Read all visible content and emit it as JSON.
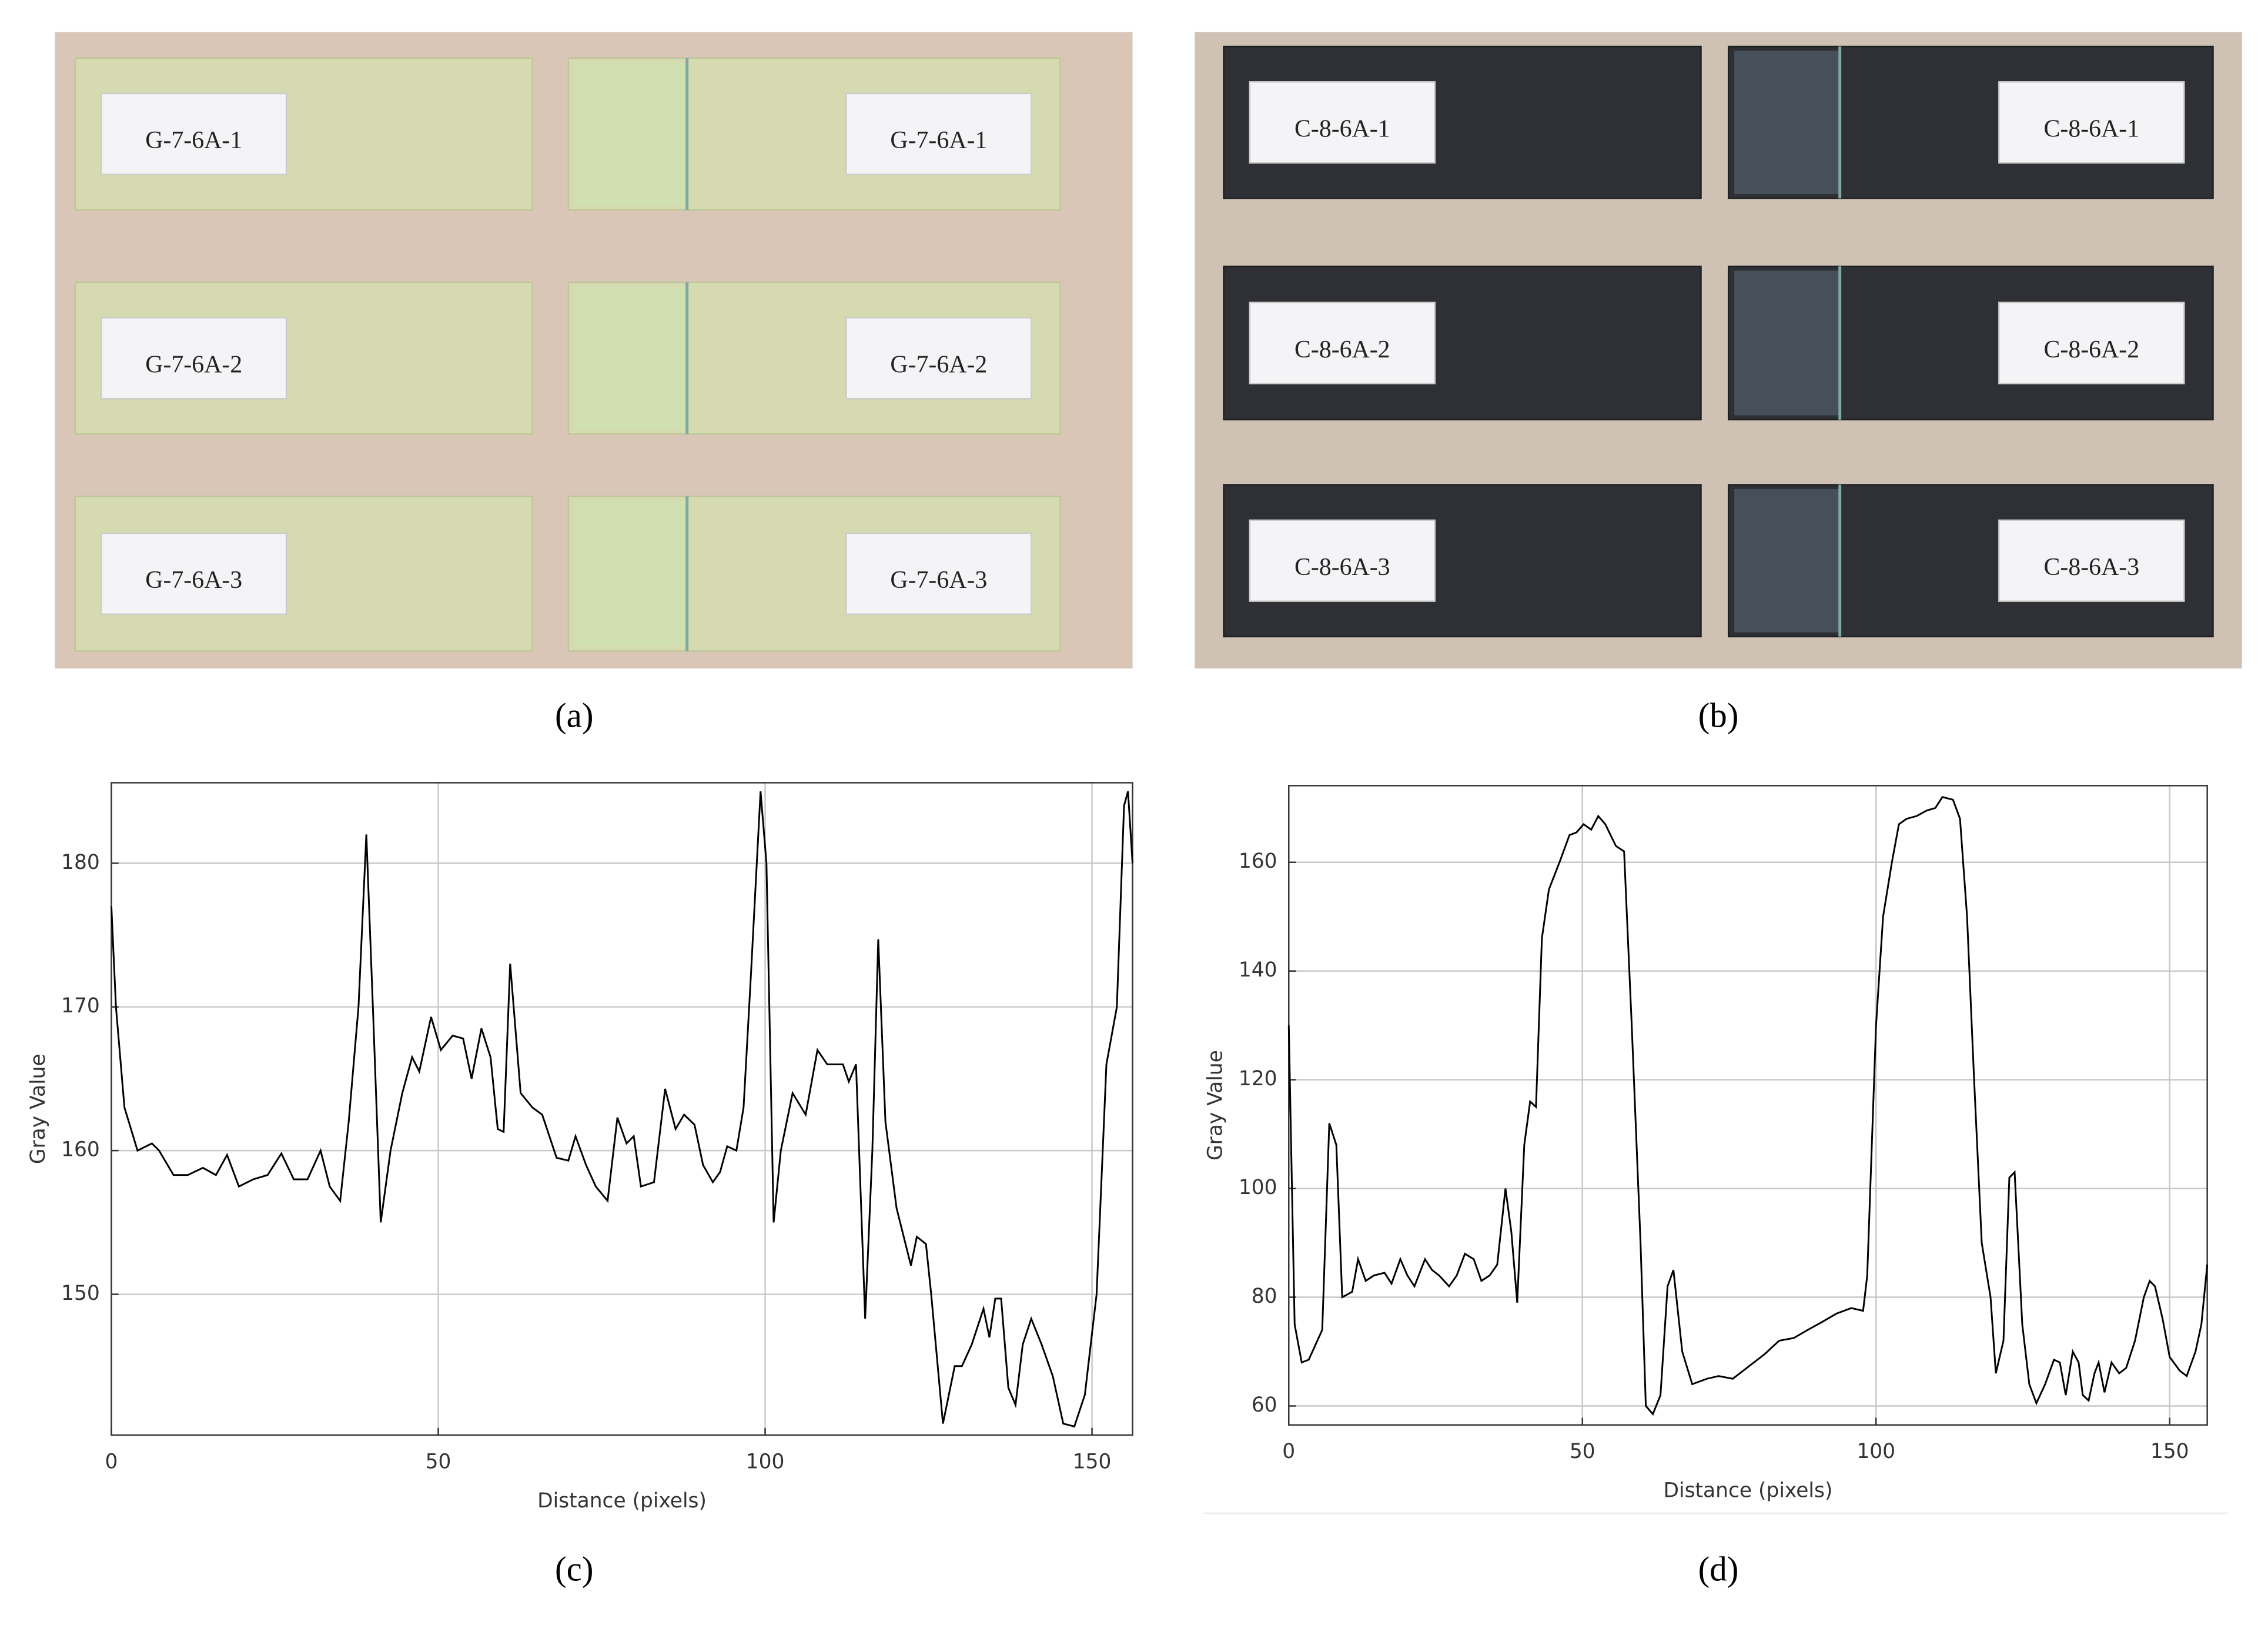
{
  "photos": [
    {
      "caption": "(a)",
      "specimens": [
        {
          "left": "G-7-6A-1",
          "right": "G-7-6A-1"
        },
        {
          "left": "G-7-6A-2",
          "right": "G-7-6A-2"
        },
        {
          "left": "G-7-6A-3",
          "right": "G-7-6A-3"
        }
      ]
    },
    {
      "caption": "(b)",
      "specimens": [
        {
          "left": "C-8-6A-1",
          "right": "C-8-6A-1"
        },
        {
          "left": "C-8-6A-2",
          "right": "C-8-6A-2"
        },
        {
          "left": "C-8-6A-3",
          "right": "C-8-6A-3"
        }
      ]
    }
  ],
  "chart_data": [
    {
      "type": "line",
      "caption": "(c)",
      "xlabel": "Distance (pixels)",
      "ylabel": "Gray Value",
      "color": "#000000",
      "grid": true,
      "xlim": [
        0,
        156.2
      ],
      "xticks": [
        0,
        50,
        100,
        150
      ],
      "ylim": [
        140.2,
        185.6
      ],
      "yticks": [
        150,
        160,
        170,
        180
      ],
      "x": [
        0,
        0.7,
        2,
        4,
        6.2,
        7.3,
        9.5,
        11.7,
        14,
        16,
        17.7,
        19.5,
        21.7,
        23.9,
        26,
        27.9,
        30,
        32,
        33.4,
        35,
        36.3,
        37.8,
        39,
        40,
        41.2,
        42.7,
        44.5,
        46,
        47.1,
        48.9,
        50.4,
        52.2,
        53.8,
        55.1,
        56.6,
        58,
        59.1,
        60,
        61,
        62.6,
        64.4,
        65.9,
        68.1,
        69.9,
        71,
        72.6,
        74.1,
        75.9,
        77.4,
        78.8,
        79.9,
        81,
        83,
        84.7,
        86.3,
        87.6,
        89.2,
        90.5,
        92,
        93.1,
        94.2,
        95.6,
        96.7,
        97.8,
        99.3,
        100.2,
        101.3,
        102.4,
        104.2,
        106.2,
        108,
        109.5,
        111.9,
        112.8,
        113.9,
        115.3,
        116.4,
        117.3,
        118.4,
        120.1,
        122.3,
        123.2,
        124.6,
        125.4,
        127.2,
        129,
        130.1,
        131.6,
        133.4,
        134.3,
        135.2,
        136.1,
        137.2,
        138.3,
        139.4,
        140.7,
        142.3,
        144,
        145.6,
        147.3,
        148.9,
        150.7,
        152.2,
        153.8,
        154.9,
        155.5,
        156.2
      ],
      "values": [
        177,
        170,
        163,
        160,
        160.5,
        160,
        158.3,
        158.3,
        158.8,
        158.3,
        159.7,
        157.5,
        158,
        158.3,
        159.8,
        158,
        158,
        160,
        157.5,
        156.5,
        162,
        170,
        182,
        170,
        155,
        160,
        164,
        166.5,
        165.5,
        169.3,
        167,
        168,
        167.8,
        165,
        168.5,
        166.5,
        161.5,
        161.3,
        173,
        164,
        163,
        162.5,
        159.5,
        159.3,
        161,
        159,
        157.5,
        156.5,
        162.3,
        160.5,
        161,
        157.5,
        157.8,
        164.3,
        161.5,
        162.5,
        161.8,
        159,
        157.8,
        158.5,
        160.3,
        160,
        163,
        172,
        185,
        180,
        155,
        160,
        164,
        162.5,
        167,
        166,
        166,
        164.8,
        166,
        148.3,
        160,
        174.7,
        162,
        156,
        152,
        154,
        153.5,
        150,
        141,
        145,
        145,
        146.5,
        149,
        147,
        149.7,
        149.7,
        143.5,
        142.3,
        146.5,
        148.3,
        146.5,
        144.3,
        141,
        140.8,
        143,
        150,
        166,
        170,
        184,
        185,
        180
      ]
    },
    {
      "type": "line",
      "caption": "(d)",
      "xlabel": "Distance (pixels)",
      "ylabel": "Gray Value",
      "color": "#000000",
      "grid": true,
      "xlim": [
        0,
        156.4
      ],
      "xticks": [
        0,
        50,
        100,
        150
      ],
      "ylim": [
        56.5,
        174.1
      ],
      "yticks": [
        60,
        80,
        100,
        120,
        140,
        160
      ],
      "x": [
        0,
        1,
        2.2,
        3.4,
        5.7,
        6.9,
        8.1,
        9.1,
        10.8,
        11.8,
        13.1,
        14.5,
        16.3,
        17.5,
        19,
        20.2,
        21.4,
        23.2,
        24.4,
        25.6,
        27.3,
        28.6,
        30,
        31.5,
        32.8,
        34.2,
        35.5,
        36.9,
        37.9,
        38.9,
        40.1,
        41.1,
        42.1,
        43.1,
        44.3,
        46.1,
        47.8,
        49,
        50.2,
        51.5,
        52.7,
        53.9,
        55.7,
        57.1,
        58.4,
        59.9,
        60.8,
        62,
        63.3,
        64.5,
        65.5,
        67,
        68.7,
        71.2,
        73.2,
        75.6,
        78.6,
        81,
        83.5,
        86,
        88.4,
        90.9,
        93.3,
        95.8,
        97.8,
        98.5,
        100,
        101.2,
        102.7,
        103.9,
        105.2,
        106.9,
        108.6,
        110.1,
        111.3,
        113.1,
        114.3,
        115.5,
        116.7,
        118,
        119.5,
        120.4,
        121.7,
        122.7,
        123.6,
        124.9,
        126.1,
        127.3,
        128.8,
        130.3,
        131.3,
        132.3,
        133.5,
        134.5,
        135.2,
        136.2,
        137.2,
        137.9,
        138.9,
        140.1,
        141.4,
        142.6,
        144.1,
        145.6,
        146.6,
        147.5,
        148.8,
        150,
        151.7,
        152.9,
        154.4,
        155.4,
        156.4
      ],
      "values": [
        130,
        75,
        68,
        68.5,
        74,
        112,
        108,
        80,
        81,
        87,
        83,
        84,
        84.5,
        82.5,
        87,
        84,
        82,
        87,
        85,
        84,
        82,
        84,
        88,
        87,
        83,
        84,
        86,
        100,
        92,
        79,
        108,
        116,
        115,
        146,
        155,
        160,
        165,
        165.5,
        167,
        166,
        168.5,
        167,
        163,
        162,
        130,
        90,
        60,
        58.5,
        62,
        82,
        85,
        70,
        64,
        65,
        65.5,
        65,
        67.5,
        69.5,
        72,
        72.5,
        74,
        75.5,
        77,
        78,
        77.5,
        84,
        130,
        150,
        160,
        167,
        168,
        168.5,
        169.5,
        170,
        172,
        171.5,
        168,
        150,
        120,
        90,
        80,
        66,
        72,
        102,
        103,
        75,
        64,
        60.5,
        64,
        68.5,
        68,
        62,
        70,
        68,
        62,
        61,
        66,
        68,
        62.5,
        68,
        66,
        67,
        72,
        80,
        83,
        82,
        76,
        69,
        66.5,
        65.5,
        70,
        75,
        86
      ]
    }
  ]
}
